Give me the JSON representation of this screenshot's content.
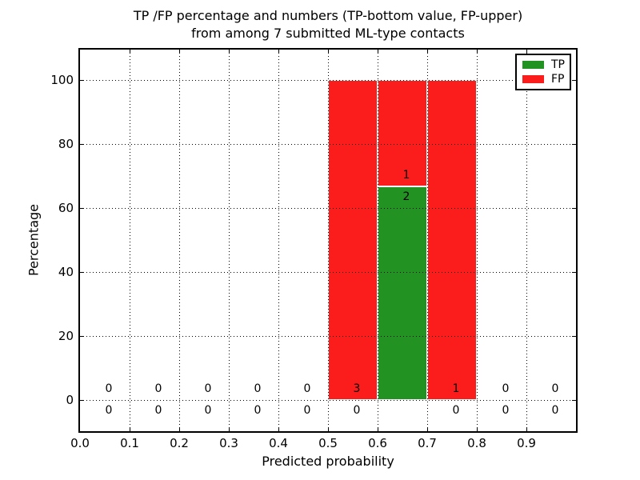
{
  "figure": {
    "title_line1": "TP /FP percentage and numbers (TP-bottom value, FP-upper)",
    "title_line2": "from among 7 submitted ML-type contacts"
  },
  "chart_data": {
    "type": "bar",
    "stacked": true,
    "title": "TP /FP percentage and numbers (TP-bottom value, FP-upper)\nfrom among 7 submitted ML-type contacts",
    "xlabel": "Predicted probability",
    "ylabel": "Percentage",
    "xlim": [
      0.0,
      1.0
    ],
    "ylim": [
      -10,
      110
    ],
    "grid": true,
    "bin_width": 0.1,
    "xticks": [
      "0.0",
      "0.1",
      "0.2",
      "0.3",
      "0.4",
      "0.5",
      "0.6",
      "0.7",
      "0.8",
      "0.9"
    ],
    "yticks": [
      "0",
      "20",
      "40",
      "60",
      "80",
      "100"
    ],
    "colors": {
      "tp": "#229222",
      "fp": "#fb1c1c"
    },
    "legend": {
      "position": "upper right",
      "entries": [
        {
          "label": "TP",
          "color": "#229222"
        },
        {
          "label": "FP",
          "color": "#fb1c1c"
        }
      ]
    },
    "bins": [
      {
        "x0": 0.0,
        "x1": 0.1,
        "tp_count": 0,
        "fp_count": 0,
        "tp_pct": 0,
        "fp_pct": 0
      },
      {
        "x0": 0.1,
        "x1": 0.2,
        "tp_count": 0,
        "fp_count": 0,
        "tp_pct": 0,
        "fp_pct": 0
      },
      {
        "x0": 0.2,
        "x1": 0.3,
        "tp_count": 0,
        "fp_count": 0,
        "tp_pct": 0,
        "fp_pct": 0
      },
      {
        "x0": 0.3,
        "x1": 0.4,
        "tp_count": 0,
        "fp_count": 0,
        "tp_pct": 0,
        "fp_pct": 0
      },
      {
        "x0": 0.4,
        "x1": 0.5,
        "tp_count": 0,
        "fp_count": 0,
        "tp_pct": 0,
        "fp_pct": 0
      },
      {
        "x0": 0.5,
        "x1": 0.6,
        "tp_count": 0,
        "fp_count": 3,
        "tp_pct": 0,
        "fp_pct": 100
      },
      {
        "x0": 0.6,
        "x1": 0.7,
        "tp_count": 2,
        "fp_count": 1,
        "tp_pct": 66.67,
        "fp_pct": 33.33
      },
      {
        "x0": 0.7,
        "x1": 0.8,
        "tp_count": 0,
        "fp_count": 1,
        "tp_pct": 0,
        "fp_pct": 100
      },
      {
        "x0": 0.8,
        "x1": 0.9,
        "tp_count": 0,
        "fp_count": 0,
        "tp_pct": 0,
        "fp_pct": 0
      },
      {
        "x0": 0.9,
        "x1": 1.0,
        "tp_count": 0,
        "fp_count": 0,
        "tp_pct": 0,
        "fp_pct": 0
      }
    ]
  }
}
